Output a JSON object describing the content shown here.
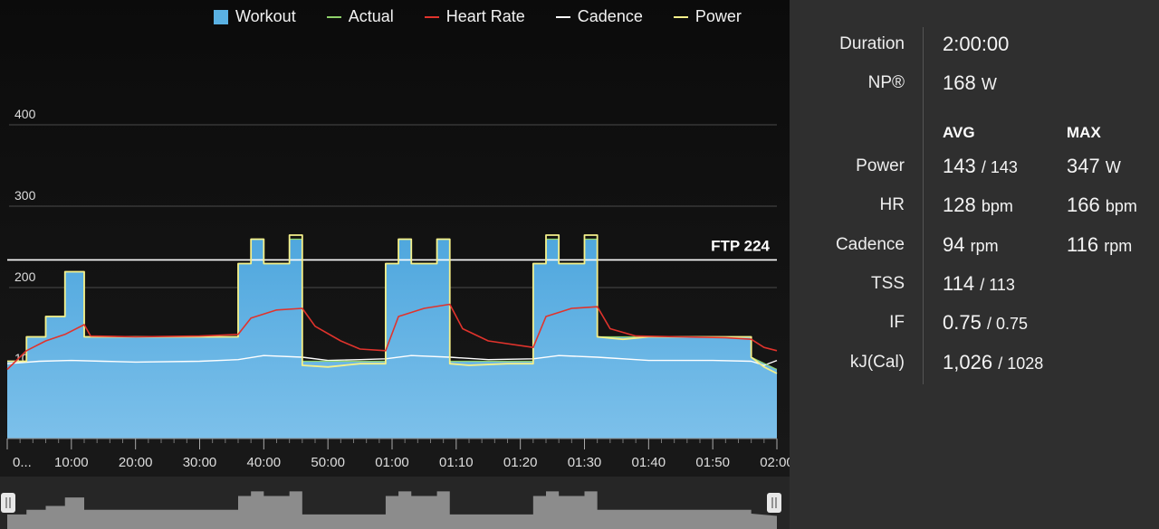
{
  "legend": [
    {
      "label": "Workout",
      "type": "box",
      "color": "#5ab1e3"
    },
    {
      "label": "Actual",
      "type": "line",
      "color": "#8fd16a"
    },
    {
      "label": "Heart Rate",
      "type": "line",
      "color": "#e0332c"
    },
    {
      "label": "Cadence",
      "type": "line",
      "color": "#ffffff"
    },
    {
      "label": "Power",
      "type": "line",
      "color": "#f5f08a"
    }
  ],
  "chart_data": {
    "type": "area",
    "y_ticks": [
      "400",
      "300",
      "200",
      "10"
    ],
    "ylim": [
      0,
      420
    ],
    "x_ticks": [
      "0...",
      "10:00",
      "20:00",
      "30:00",
      "40:00",
      "50:00",
      "01:00",
      "01:10",
      "01:20",
      "01:30",
      "01:40",
      "01:50",
      "02:00"
    ],
    "xlim_minutes": [
      0,
      120
    ],
    "ftp_label": "FTP 224",
    "ftp": 224,
    "workout": [
      [
        0,
        95
      ],
      [
        3,
        95
      ],
      [
        3,
        125
      ],
      [
        6,
        125
      ],
      [
        6,
        150
      ],
      [
        9,
        150
      ],
      [
        9,
        205
      ],
      [
        12,
        205
      ],
      [
        12,
        125
      ],
      [
        36,
        125
      ],
      [
        36,
        215
      ],
      [
        38,
        215
      ],
      [
        38,
        245
      ],
      [
        40,
        245
      ],
      [
        40,
        215
      ],
      [
        44,
        215
      ],
      [
        44,
        245
      ],
      [
        46,
        245
      ],
      [
        46,
        95
      ],
      [
        59,
        95
      ],
      [
        59,
        215
      ],
      [
        61,
        215
      ],
      [
        61,
        245
      ],
      [
        63,
        245
      ],
      [
        63,
        215
      ],
      [
        67,
        215
      ],
      [
        67,
        245
      ],
      [
        69,
        245
      ],
      [
        69,
        95
      ],
      [
        82,
        95
      ],
      [
        82,
        215
      ],
      [
        84,
        215
      ],
      [
        84,
        245
      ],
      [
        86,
        245
      ],
      [
        86,
        215
      ],
      [
        90,
        215
      ],
      [
        90,
        245
      ],
      [
        92,
        245
      ],
      [
        92,
        125
      ],
      [
        116,
        125
      ],
      [
        116,
        100
      ],
      [
        120,
        85
      ]
    ],
    "power": [
      [
        0,
        95
      ],
      [
        3,
        95
      ],
      [
        3,
        125
      ],
      [
        6,
        125
      ],
      [
        6,
        150
      ],
      [
        9,
        150
      ],
      [
        9,
        205
      ],
      [
        12,
        205
      ],
      [
        12,
        125
      ],
      [
        36,
        125
      ],
      [
        36,
        215
      ],
      [
        38,
        215
      ],
      [
        38,
        245
      ],
      [
        40,
        245
      ],
      [
        40,
        215
      ],
      [
        44,
        215
      ],
      [
        44,
        250
      ],
      [
        46,
        250
      ],
      [
        46,
        90
      ],
      [
        50,
        88
      ],
      [
        55,
        92
      ],
      [
        59,
        92
      ],
      [
        59,
        215
      ],
      [
        61,
        215
      ],
      [
        61,
        245
      ],
      [
        63,
        245
      ],
      [
        63,
        215
      ],
      [
        67,
        215
      ],
      [
        67,
        245
      ],
      [
        69,
        245
      ],
      [
        69,
        92
      ],
      [
        72,
        90
      ],
      [
        78,
        92
      ],
      [
        82,
        92
      ],
      [
        82,
        215
      ],
      [
        84,
        215
      ],
      [
        84,
        250
      ],
      [
        86,
        250
      ],
      [
        86,
        215
      ],
      [
        90,
        215
      ],
      [
        90,
        250
      ],
      [
        92,
        250
      ],
      [
        92,
        125
      ],
      [
        96,
        122
      ],
      [
        100,
        125
      ],
      [
        110,
        125
      ],
      [
        116,
        125
      ],
      [
        116,
        100
      ],
      [
        118,
        88
      ],
      [
        120,
        80
      ]
    ],
    "heart_rate": [
      [
        0,
        85
      ],
      [
        3,
        108
      ],
      [
        6,
        120
      ],
      [
        9,
        128
      ],
      [
        12,
        140
      ],
      [
        13,
        126
      ],
      [
        20,
        125
      ],
      [
        30,
        126
      ],
      [
        36,
        128
      ],
      [
        38,
        148
      ],
      [
        42,
        158
      ],
      [
        46,
        160
      ],
      [
        48,
        138
      ],
      [
        52,
        120
      ],
      [
        55,
        110
      ],
      [
        59,
        108
      ],
      [
        61,
        150
      ],
      [
        65,
        160
      ],
      [
        69,
        165
      ],
      [
        71,
        135
      ],
      [
        75,
        120
      ],
      [
        82,
        112
      ],
      [
        84,
        150
      ],
      [
        88,
        160
      ],
      [
        92,
        162
      ],
      [
        94,
        135
      ],
      [
        98,
        126
      ],
      [
        105,
        125
      ],
      [
        112,
        124
      ],
      [
        116,
        122
      ],
      [
        118,
        112
      ],
      [
        120,
        108
      ]
    ],
    "cadence": [
      [
        0,
        92
      ],
      [
        5,
        95
      ],
      [
        10,
        96
      ],
      [
        15,
        95
      ],
      [
        20,
        94
      ],
      [
        30,
        95
      ],
      [
        36,
        97
      ],
      [
        40,
        102
      ],
      [
        46,
        100
      ],
      [
        50,
        96
      ],
      [
        55,
        97
      ],
      [
        59,
        98
      ],
      [
        63,
        102
      ],
      [
        69,
        100
      ],
      [
        75,
        97
      ],
      [
        82,
        98
      ],
      [
        86,
        102
      ],
      [
        92,
        100
      ],
      [
        100,
        96
      ],
      [
        110,
        96
      ],
      [
        116,
        95
      ],
      [
        118,
        90
      ],
      [
        120,
        96
      ]
    ],
    "navigator_fill": "#8c8c8c"
  },
  "stats": {
    "duration_label": "Duration",
    "duration": "2:00:00",
    "np_label": "NP®",
    "np_value": "168",
    "np_unit": "W",
    "avg_header": "AVG",
    "max_header": "MAX",
    "rows": [
      {
        "label": "Power",
        "avg": "143",
        "avg_sub": "/ 143",
        "max": "347",
        "max_unit": "W"
      },
      {
        "label": "HR",
        "avg": "128",
        "avg_sub": "bpm",
        "max": "166",
        "max_unit": "bpm"
      },
      {
        "label": "Cadence",
        "avg": "94",
        "avg_sub": "rpm",
        "max": "116",
        "max_unit": "rpm"
      },
      {
        "label": "TSS",
        "avg": "114",
        "avg_sub": "/ 113",
        "max": "",
        "max_unit": ""
      },
      {
        "label": "IF",
        "avg": "0.75",
        "avg_sub": "/ 0.75",
        "max": "",
        "max_unit": ""
      },
      {
        "label": "kJ(Cal)",
        "avg": "1,026",
        "avg_sub": "/ 1028",
        "max": "",
        "max_unit": ""
      }
    ]
  }
}
